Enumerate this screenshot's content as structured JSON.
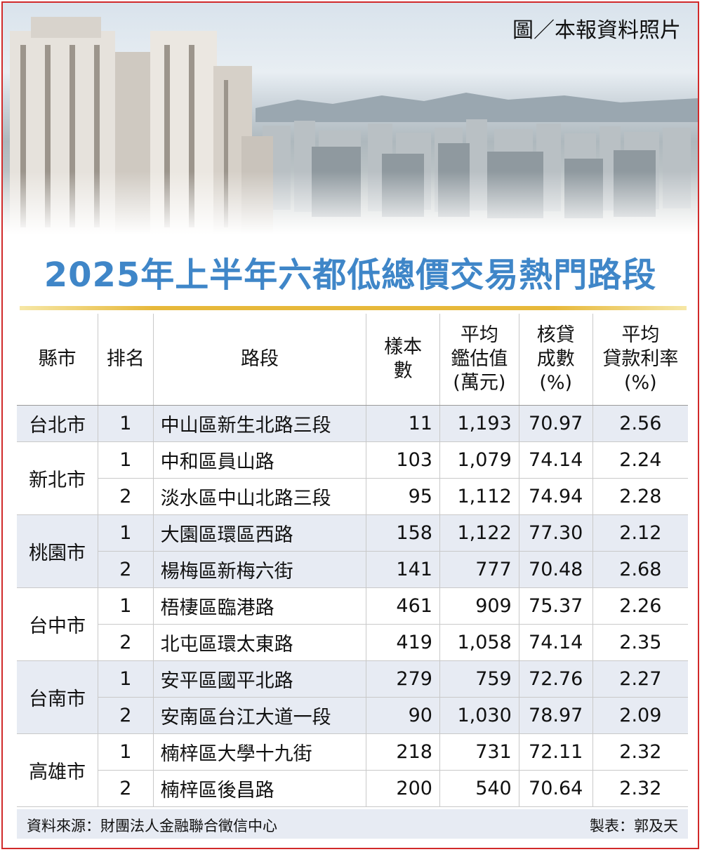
{
  "credit": "圖／本報資料照片",
  "title": "2025年上半年六都低總價交易熱門路段",
  "headers": {
    "city": "縣市",
    "rank": "排名",
    "road": "路段",
    "sample_1": "樣本",
    "sample_2": "數",
    "price_1": "平均",
    "price_2": "鑑估值",
    "price_3": "(萬元)",
    "loan_1": "核貸",
    "loan_2": "成數",
    "loan_3": "(%)",
    "rate_1": "平均",
    "rate_2": "貸款利率",
    "rate_3": "(%)"
  },
  "rows": [
    {
      "city": "台北市",
      "rank": "1",
      "road": "中山區新生北路三段",
      "sample": "11",
      "price": "1,193",
      "loan": "70.97",
      "rate": "2.56"
    },
    {
      "city": "新北市",
      "rank": "1",
      "road": "中和區員山路",
      "sample": "103",
      "price": "1,079",
      "loan": "74.14",
      "rate": "2.24"
    },
    {
      "city": "",
      "rank": "2",
      "road": "淡水區中山北路三段",
      "sample": "95",
      "price": "1,112",
      "loan": "74.94",
      "rate": "2.28"
    },
    {
      "city": "桃園市",
      "rank": "1",
      "road": "大園區環區西路",
      "sample": "158",
      "price": "1,122",
      "loan": "77.30",
      "rate": "2.12"
    },
    {
      "city": "",
      "rank": "2",
      "road": "楊梅區新梅六街",
      "sample": "141",
      "price": "777",
      "loan": "70.48",
      "rate": "2.68"
    },
    {
      "city": "台中市",
      "rank": "1",
      "road": "梧棲區臨港路",
      "sample": "461",
      "price": "909",
      "loan": "75.37",
      "rate": "2.26"
    },
    {
      "city": "",
      "rank": "2",
      "road": "北屯區環太東路",
      "sample": "419",
      "price": "1,058",
      "loan": "74.14",
      "rate": "2.35"
    },
    {
      "city": "台南市",
      "rank": "1",
      "road": "安平區國平北路",
      "sample": "279",
      "price": "759",
      "loan": "72.76",
      "rate": "2.27"
    },
    {
      "city": "",
      "rank": "2",
      "road": "安南區台江大道一段",
      "sample": "90",
      "price": "1,030",
      "loan": "78.97",
      "rate": "2.09"
    },
    {
      "city": "高雄市",
      "rank": "1",
      "road": "楠梓區大學十九街",
      "sample": "218",
      "price": "731",
      "loan": "72.11",
      "rate": "2.32"
    },
    {
      "city": "",
      "rank": "2",
      "road": "楠梓區後昌路",
      "sample": "200",
      "price": "540",
      "loan": "70.64",
      "rate": "2.32"
    }
  ],
  "footer": {
    "source": "資料來源：財團法人金融聯合徵信中心",
    "maker": "製表：郭及天"
  },
  "colors": {
    "title": "#3f86c8",
    "border": "#d12a2a",
    "shade": "#e7ebf3",
    "rule": "#e7b83a"
  }
}
